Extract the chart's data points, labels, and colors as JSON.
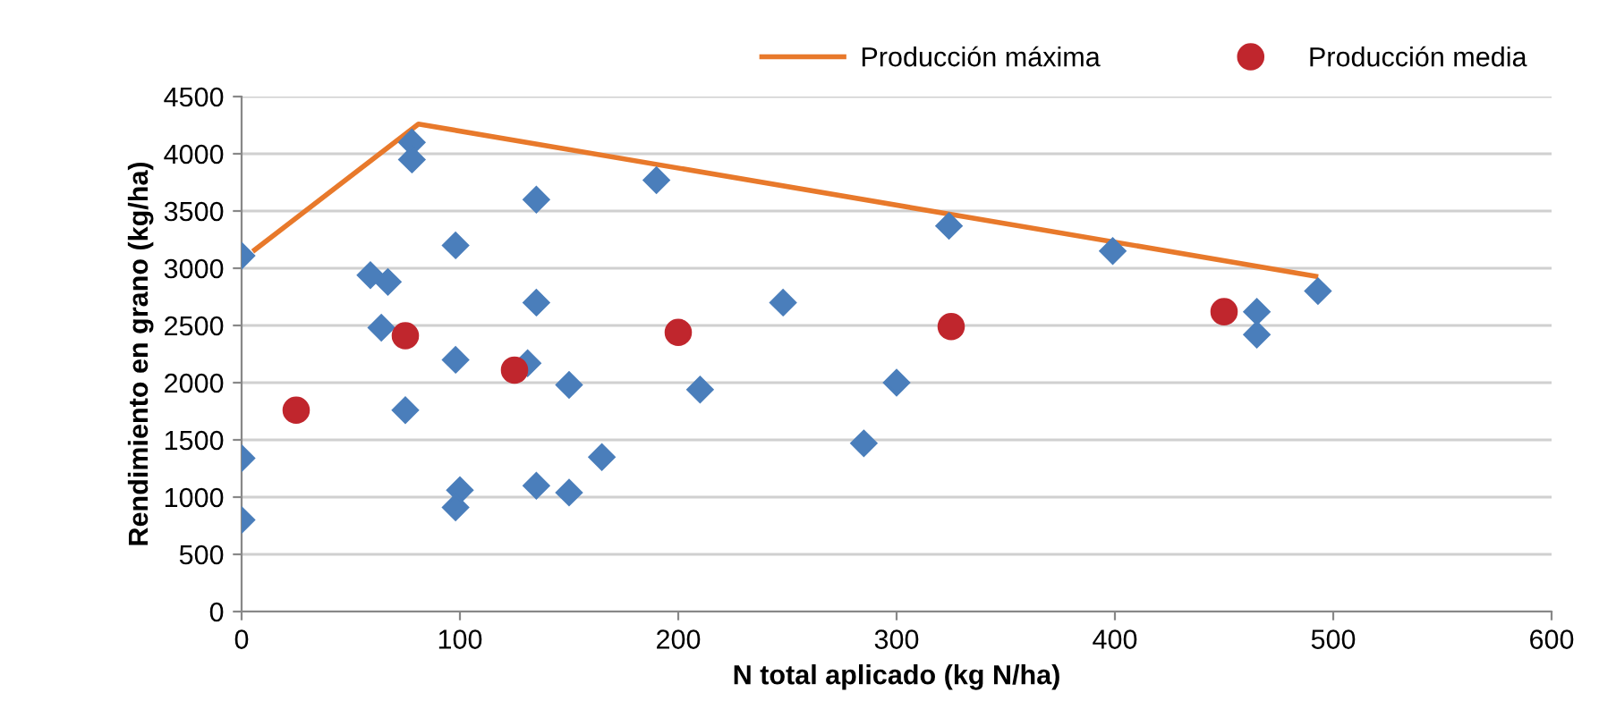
{
  "chart_data": {
    "type": "scatter",
    "xlabel": "N total aplicado (kg N/ha)",
    "ylabel": "Rendimiento en grano (kg/ha)",
    "xlim": [
      0,
      600
    ],
    "xticks": [
      0,
      100,
      200,
      300,
      400,
      500,
      600
    ],
    "ylim": [
      0,
      4500
    ],
    "yticks": [
      0,
      500,
      1000,
      1500,
      2000,
      2500,
      3000,
      3500,
      4000,
      4500
    ],
    "grid": "y",
    "legend": "top right",
    "series": [
      {
        "color": "#4a7ebb",
        "marker": "diamond",
        "x": [
          0,
          0,
          0,
          78,
          78,
          98,
          59,
          67,
          64,
          98,
          75,
          135,
          135,
          131,
          150,
          165,
          100,
          98,
          135,
          150,
          190,
          210,
          248,
          285,
          300,
          324,
          399,
          465,
          465,
          493
        ],
        "values": [
          3110,
          1340,
          800,
          4100,
          3950,
          3200,
          2940,
          2880,
          2480,
          2200,
          1760,
          3600,
          2700,
          2170,
          1980,
          1350,
          1060,
          910,
          1100,
          1040,
          3770,
          1940,
          2700,
          1470,
          2000,
          3370,
          3150,
          2620,
          2420,
          2800
        ]
      },
      {
        "type": "line",
        "name": "Producción máxima",
        "color": "#e8792b",
        "marker": "none",
        "x": [
          6,
          81,
          492
        ],
        "values": [
          3160,
          4260,
          2930
        ]
      },
      {
        "name": "Producción media",
        "color": "#c0262d",
        "marker": "circle",
        "x": [
          25,
          75,
          125,
          200,
          325,
          450
        ],
        "values": [
          1760,
          2410,
          2110,
          2440,
          2490,
          2620
        ]
      }
    ]
  }
}
